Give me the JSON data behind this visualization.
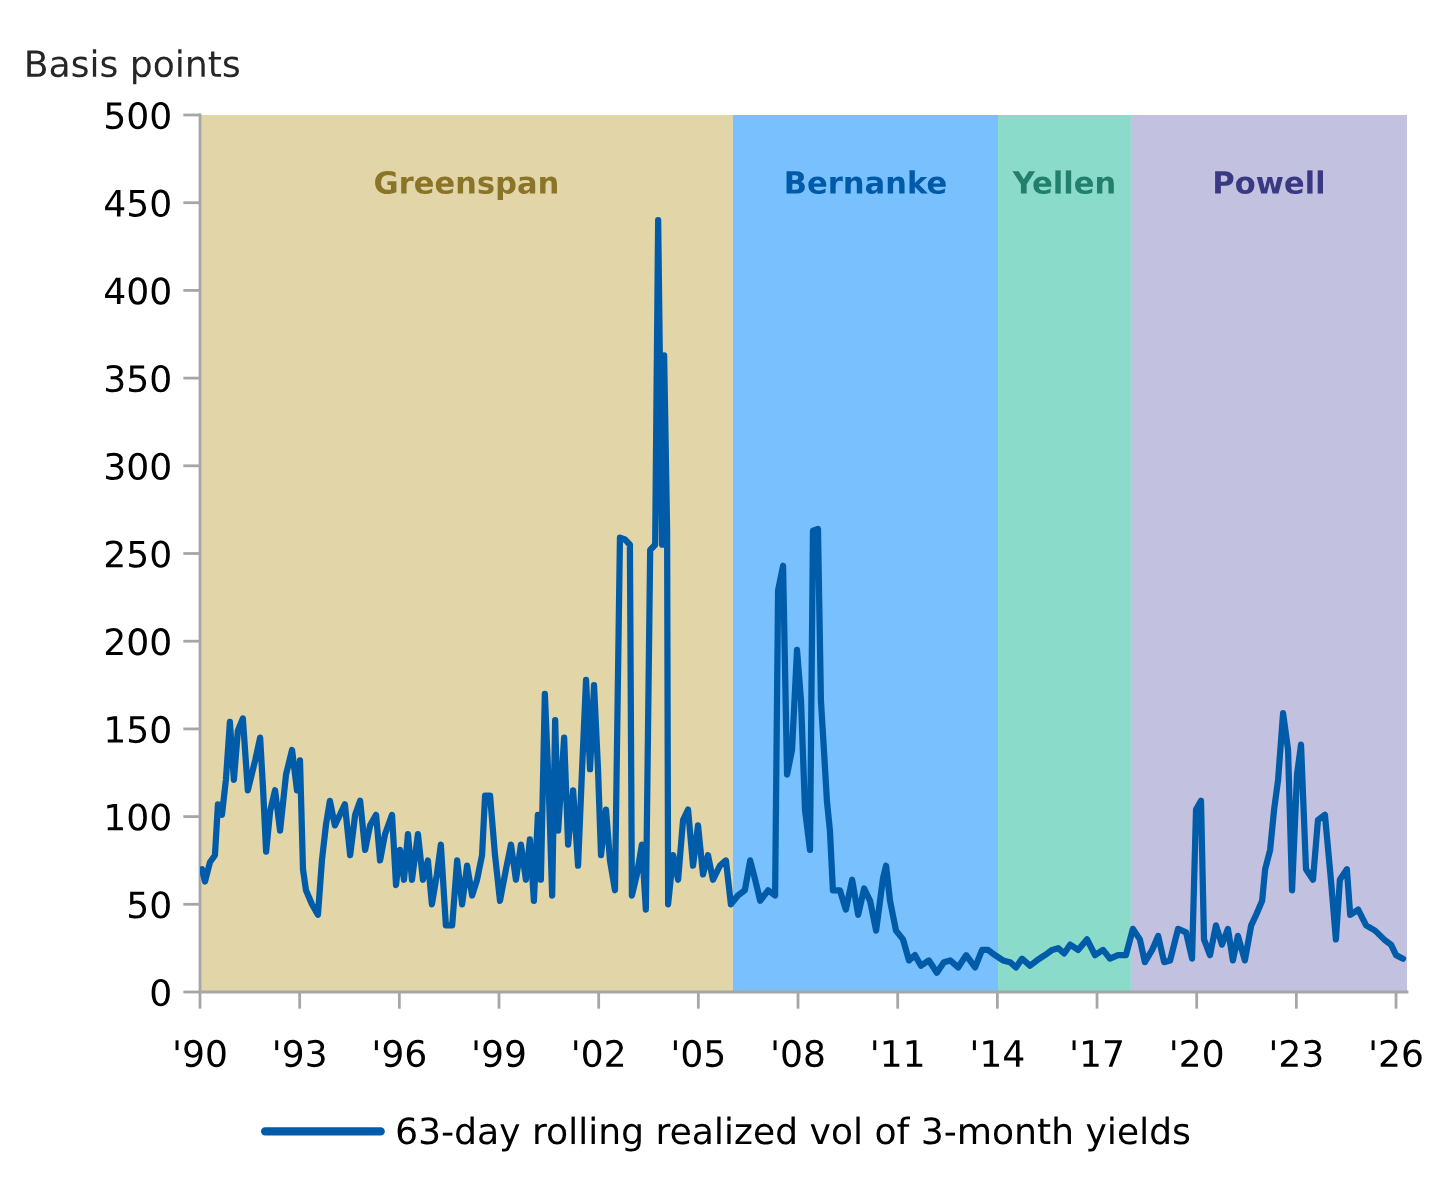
{
  "chart_data": {
    "type": "line",
    "ylabel": "Basis points",
    "xlim": [
      1990,
      2026.33
    ],
    "xticks": [
      {
        "value": 1990,
        "label": "'90"
      },
      {
        "value": 1993,
        "label": "'93"
      },
      {
        "value": 1996,
        "label": "'96"
      },
      {
        "value": 1999,
        "label": "'99"
      },
      {
        "value": 2002,
        "label": "'02"
      },
      {
        "value": 2005,
        "label": "'05"
      },
      {
        "value": 2008,
        "label": "'08"
      },
      {
        "value": 2011,
        "label": "'11"
      },
      {
        "value": 2014,
        "label": "'14"
      },
      {
        "value": 2017,
        "label": "'17"
      },
      {
        "value": 2020,
        "label": "'20"
      },
      {
        "value": 2023,
        "label": "'23"
      },
      {
        "value": 2026,
        "label": "'26"
      }
    ],
    "ylim": [
      0,
      500
    ],
    "yticks": [
      0,
      50,
      100,
      150,
      200,
      250,
      300,
      350,
      400,
      450,
      500
    ],
    "grid": false,
    "legend": "bottom",
    "line_style": "solid",
    "marker": "none",
    "bands": [
      {
        "axis": "x",
        "from": 1990,
        "to": 2006.04,
        "label": "Greenspan",
        "color": "#e2d5a8"
      },
      {
        "axis": "x",
        "from": 2006.04,
        "to": 2014.02,
        "label": "Bernanke",
        "color": "#78c0fe"
      },
      {
        "axis": "x",
        "from": 2014.02,
        "to": 2018.02,
        "label": "Yellen",
        "color": "#8adbca"
      },
      {
        "axis": "x",
        "from": 2018.02,
        "to": 2026.33,
        "label": "Powell",
        "color": "#c2c2e0"
      }
    ],
    "series": [
      {
        "name": "63-day rolling realized vol of 3-month yields",
        "color": "#005ca8",
        "x": [
          1990.06,
          1990.15,
          1990.3,
          1990.45,
          1990.54,
          1990.66,
          1990.78,
          1990.9,
          1991.02,
          1991.14,
          1991.29,
          1991.44,
          1991.66,
          1991.81,
          1991.9,
          1991.99,
          1992.11,
          1992.26,
          1992.41,
          1992.59,
          1992.77,
          1992.92,
          1993.01,
          1993.1,
          1993.19,
          1993.37,
          1993.55,
          1993.67,
          1993.79,
          1993.91,
          1994.06,
          1994.21,
          1994.36,
          1994.52,
          1994.67,
          1994.82,
          1994.97,
          1995.12,
          1995.3,
          1995.42,
          1995.57,
          1995.78,
          1995.9,
          1996.02,
          1996.14,
          1996.26,
          1996.38,
          1996.56,
          1996.71,
          1996.86,
          1996.98,
          1997.13,
          1997.25,
          1997.4,
          1997.59,
          1997.74,
          1997.89,
          1998.04,
          1998.19,
          1998.34,
          1998.49,
          1998.58,
          1998.73,
          1998.88,
          1999.03,
          1999.21,
          1999.36,
          1999.51,
          1999.66,
          1999.81,
          1999.93,
          2000.05,
          2000.17,
          2000.26,
          2000.38,
          2000.5,
          2000.6,
          2000.69,
          2000.78,
          2000.96,
          2001.08,
          2001.23,
          2001.38,
          2001.5,
          2001.62,
          2001.74,
          2001.86,
          2001.98,
          2002.07,
          2002.22,
          2002.34,
          2002.49,
          2002.64,
          2002.79,
          2002.94,
          2003.0,
          2003.15,
          2003.3,
          2003.42,
          2003.55,
          2003.7,
          2003.79,
          2003.91,
          2003.97,
          2004.06,
          2004.09,
          2004.24,
          2004.39,
          2004.54,
          2004.69,
          2004.84,
          2004.99,
          2005.14,
          2005.29,
          2005.44,
          2005.65,
          2005.83,
          2005.98,
          2006.19,
          2006.4,
          2006.56,
          2006.71,
          2006.86,
          2007.1,
          2007.31,
          2007.4,
          2007.55,
          2007.67,
          2007.82,
          2007.97,
          2008.09,
          2008.21,
          2008.36,
          2008.45,
          2008.6,
          2008.69,
          2008.78,
          2008.87,
          2008.96,
          2009.05,
          2009.26,
          2009.44,
          2009.63,
          2009.81,
          2009.99,
          2010.17,
          2010.35,
          2010.56,
          2010.65,
          2010.77,
          2010.95,
          2011.16,
          2011.34,
          2011.52,
          2011.7,
          2011.94,
          2012.18,
          2012.39,
          2012.58,
          2012.82,
          2013.06,
          2013.33,
          2013.54,
          2013.72,
          2013.93,
          2014.17,
          2014.38,
          2014.56,
          2014.74,
          2014.98,
          2015.19,
          2015.43,
          2015.65,
          2015.83,
          2016.01,
          2016.19,
          2016.43,
          2016.7,
          2016.94,
          2017.18,
          2017.39,
          2017.63,
          2017.87,
          2018.08,
          2018.29,
          2018.44,
          2018.66,
          2018.84,
          2019.02,
          2019.2,
          2019.44,
          2019.68,
          2019.86,
          2019.98,
          2020.13,
          2020.22,
          2020.4,
          2020.58,
          2020.76,
          2020.94,
          2021.09,
          2021.24,
          2021.45,
          2021.64,
          2021.79,
          2021.97,
          2022.06,
          2022.21,
          2022.33,
          2022.45,
          2022.6,
          2022.75,
          2022.87,
          2023.02,
          2023.14,
          2023.29,
          2023.5,
          2023.65,
          2023.86,
          2024.04,
          2024.19,
          2024.31,
          2024.52,
          2024.62,
          2024.86,
          2025.1,
          2025.37,
          2025.64,
          2025.85,
          2026.0,
          2026.21
        ],
        "values": [
          70,
          63,
          74,
          78,
          107,
          101,
          121,
          154,
          121,
          149,
          156,
          115,
          132,
          145,
          115,
          80,
          103,
          115,
          92,
          124,
          138,
          115,
          132,
          70,
          58,
          50,
          44,
          75,
          95,
          109,
          95,
          101,
          107,
          78,
          101,
          109,
          81,
          95,
          101,
          75,
          90,
          101,
          61,
          81,
          64,
          90,
          64,
          90,
          64,
          75,
          50,
          67,
          84,
          38,
          38,
          75,
          50,
          72,
          55,
          64,
          78,
          112,
          112,
          78,
          52,
          70,
          84,
          64,
          84,
          64,
          87,
          52,
          101,
          64,
          170,
          115,
          55,
          155,
          92,
          145,
          84,
          115,
          72,
          127,
          178,
          127,
          175,
          127,
          78,
          104,
          75,
          58,
          259,
          258,
          255,
          55,
          67,
          84,
          47,
          252,
          255,
          440,
          255,
          363,
          263,
          50,
          78,
          64,
          98,
          104,
          72,
          95,
          67,
          78,
          64,
          72,
          75,
          50,
          55,
          58,
          75,
          64,
          52,
          58,
          55,
          229,
          243,
          124,
          138,
          195,
          166,
          104,
          81,
          263,
          264,
          166,
          138,
          109,
          92,
          58,
          58,
          47,
          64,
          44,
          59,
          52,
          35,
          65,
          72,
          52,
          35,
          30,
          18,
          21,
          15,
          18,
          11,
          17,
          18,
          14,
          21,
          14,
          24,
          24,
          21,
          18,
          17,
          14,
          19,
          15,
          18,
          21,
          24,
          25,
          22,
          27,
          24,
          30,
          21,
          24,
          19,
          21,
          21,
          36,
          30,
          17,
          24,
          32,
          17,
          18,
          36,
          34,
          19,
          104,
          109,
          30,
          21,
          38,
          27,
          36,
          18,
          32,
          18,
          38,
          44,
          52,
          70,
          81,
          104,
          121,
          159,
          138,
          58,
          124,
          141,
          70,
          64,
          98,
          101,
          64,
          30,
          64,
          70,
          44,
          47,
          38,
          35,
          30,
          27,
          21,
          19
        ]
      }
    ]
  }
}
